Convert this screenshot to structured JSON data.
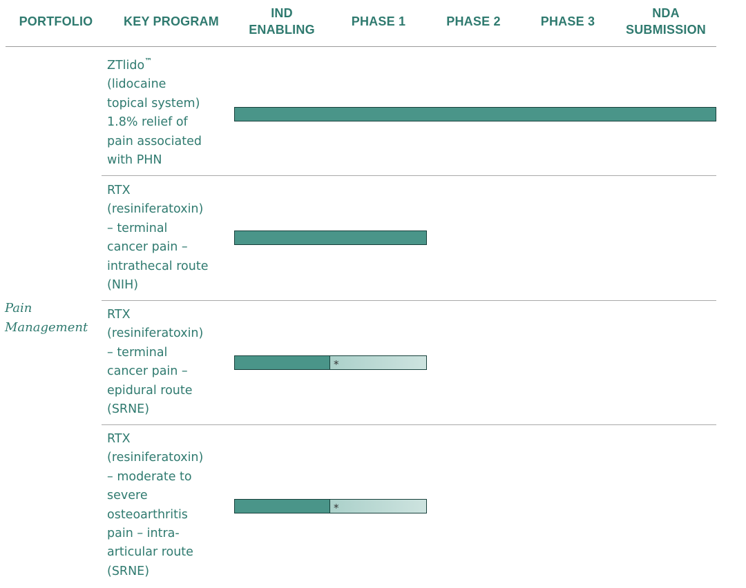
{
  "header": {
    "portfolio": "PORTFOLIO",
    "key_program": "KEY PROGRAM",
    "ind_1": "IND",
    "ind_2": "ENABLING",
    "phase1": "PHASE 1",
    "phase2": "PHASE 2",
    "phase3": "PHASE 3",
    "nda_1": "NDA",
    "nda_2": "SUBMISSION"
  },
  "portfolio": {
    "line1": "Pain",
    "line2": "Management"
  },
  "programs": [
    {
      "lines": [
        "ZTlido",
        "(lidocaine",
        "topical system)",
        "1.8% relief of",
        "pain associated",
        "with PHN"
      ],
      "trademark": "™"
    },
    {
      "lines": [
        "RTX",
        "(resiniferatoxin)",
        "– terminal",
        "cancer pain –",
        "intrathecal route",
        "(NIH)"
      ]
    },
    {
      "lines": [
        "RTX",
        "(resiniferatoxin)",
        "– terminal",
        "cancer pain –",
        "epidural route",
        "(SRNE)"
      ],
      "marker": "*"
    },
    {
      "lines": [
        "RTX",
        "(resiniferatoxin)",
        "– moderate to",
        "severe",
        "osteoarthritis",
        "pain – intra-",
        "articular route",
        "(SRNE)"
      ],
      "marker": "*"
    }
  ],
  "chart_data": {
    "type": "bar",
    "orientation": "horizontal",
    "stages": [
      "IND ENABLING",
      "PHASE 1",
      "PHASE 2",
      "PHASE 3",
      "NDA SUBMISSION"
    ],
    "categories": [
      "ZTlido (lidocaine topical system) 1.8% relief of pain associated with PHN",
      "RTX (resiniferatoxin) – terminal cancer pain – intrathecal route (NIH)",
      "RTX (resiniferatoxin) – terminal cancer pain – epidural route (SRNE)",
      "RTX (resiniferatoxin) – moderate to severe osteoarthritis pain – intra-articular route (SRNE)"
    ],
    "values": [
      5,
      2,
      2,
      2
    ],
    "solid_progress": [
      5,
      2,
      1,
      1
    ],
    "xlim": [
      0,
      5
    ],
    "colors": {
      "solid": "#4a9589",
      "faded": "#cde3df",
      "border": "#163f3a",
      "text": "#2f7a6f"
    }
  }
}
